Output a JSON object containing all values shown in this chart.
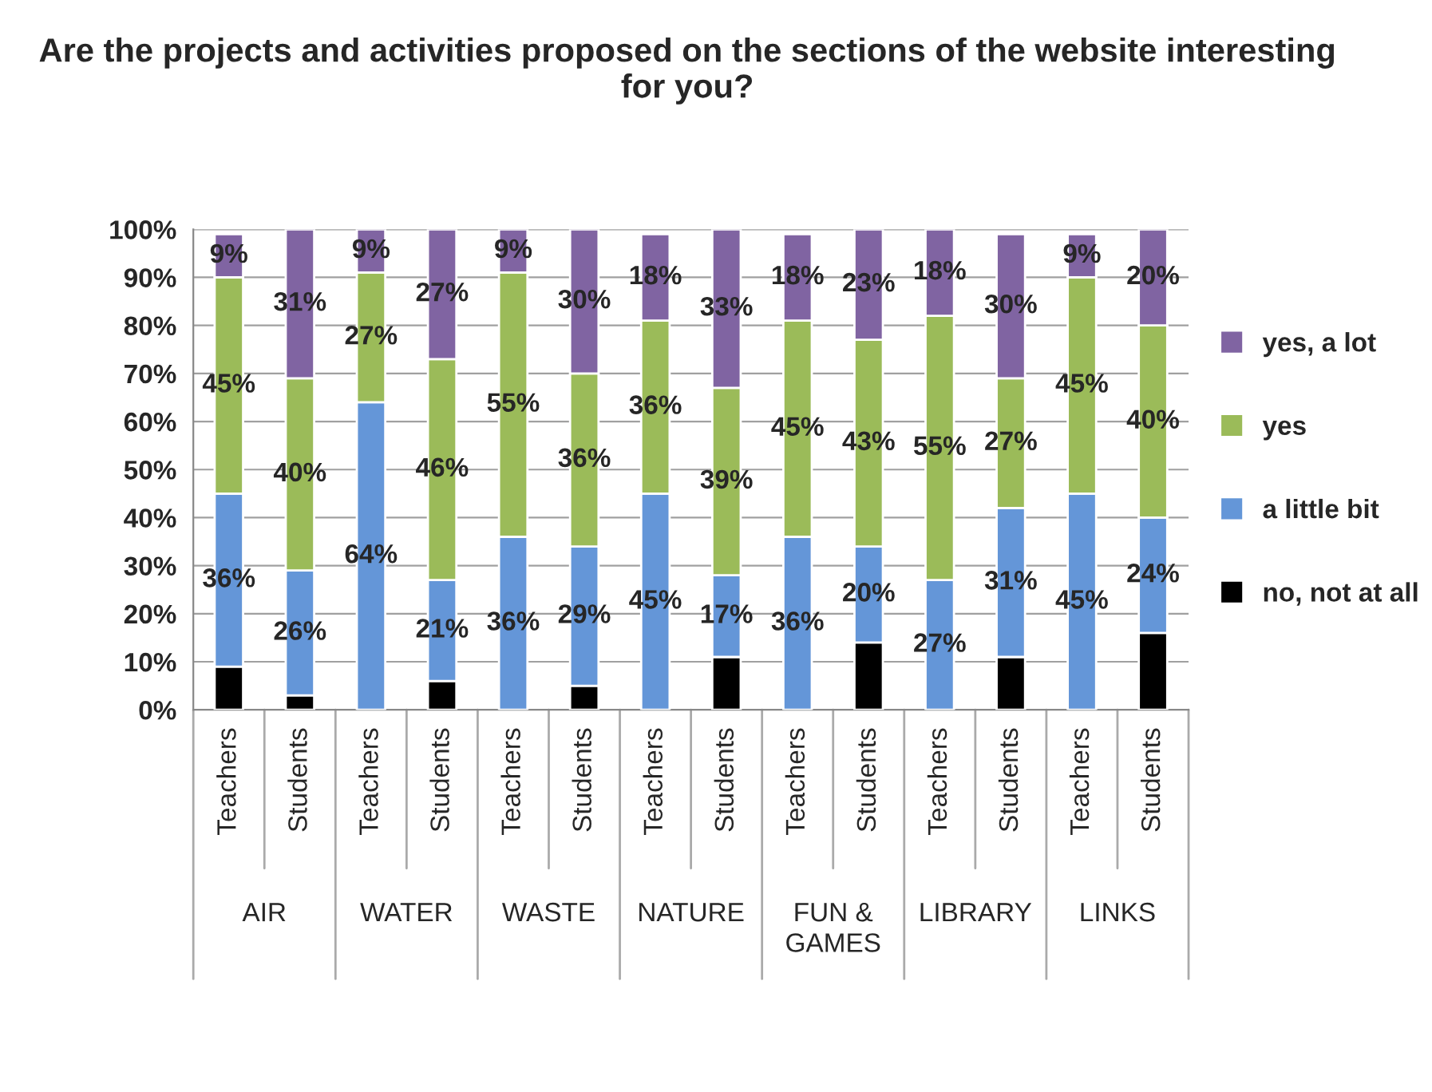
{
  "chart_data": {
    "type": "bar",
    "stacked": true,
    "title": "Are the projects and activities proposed on the sections of the website interesting for you?",
    "categories": [
      "Teachers",
      "Students",
      "Teachers",
      "Students",
      "Teachers",
      "Students",
      "Teachers",
      "Students",
      "Teachers",
      "Students",
      "Teachers",
      "Students",
      "Teachers",
      "Students"
    ],
    "annotations": [
      "AIR",
      "WATER",
      "WASTE",
      "NATURE",
      "FUN &\nGAMES",
      "LIBRARY",
      "LINKS"
    ],
    "series": [
      {
        "name": "no, not at all",
        "color": "#000000",
        "values": [
          9,
          3,
          0,
          6,
          0,
          5,
          0,
          11,
          0,
          14,
          0,
          11,
          0,
          16
        ],
        "value_labels": [
          null,
          null,
          null,
          null,
          null,
          null,
          null,
          null,
          null,
          null,
          null,
          null,
          null,
          null
        ]
      },
      {
        "name": "a little bit",
        "color": "#6496d8",
        "values": [
          36,
          26,
          64,
          21,
          36,
          29,
          45,
          17,
          36,
          20,
          27,
          31,
          45,
          24
        ],
        "value_labels": [
          "36%",
          "26%",
          "64%",
          "21%",
          "36%",
          "29%",
          "45%",
          "17%",
          "36%",
          "20%",
          "27%",
          "31%",
          "45%",
          "24%"
        ]
      },
      {
        "name": "yes",
        "color": "#9bbb59",
        "values": [
          45,
          40,
          27,
          46,
          55,
          36,
          36,
          39,
          45,
          43,
          55,
          27,
          45,
          40
        ],
        "value_labels": [
          "45%",
          "40%",
          "27%",
          "46%",
          "55%",
          "36%",
          "36%",
          "39%",
          "45%",
          "43%",
          "55%",
          "27%",
          "45%",
          "40%"
        ]
      },
      {
        "name": "yes, a lot",
        "color": "#8064a2",
        "values": [
          9,
          31,
          9,
          27,
          9,
          30,
          18,
          33,
          18,
          23,
          18,
          30,
          9,
          20
        ],
        "value_labels": [
          "9%",
          "31%",
          "9%",
          "27%",
          "9%",
          "30%",
          "18%",
          "33%",
          "18%",
          "23%",
          "18%",
          "30%",
          "9%",
          "20%"
        ]
      }
    ],
    "ylim": [
      0,
      100
    ],
    "yticks": [
      {
        "value": 0,
        "label": "0%"
      },
      {
        "value": 10,
        "label": "10%"
      },
      {
        "value": 20,
        "label": "20%"
      },
      {
        "value": 30,
        "label": "30%"
      },
      {
        "value": 40,
        "label": "40%"
      },
      {
        "value": 50,
        "label": "50%"
      },
      {
        "value": 60,
        "label": "60%"
      },
      {
        "value": 70,
        "label": "70%"
      },
      {
        "value": 80,
        "label": "80%"
      },
      {
        "value": 90,
        "label": "90%"
      },
      {
        "value": 100,
        "label": "100%"
      }
    ],
    "grid": "y",
    "legend": "right"
  }
}
